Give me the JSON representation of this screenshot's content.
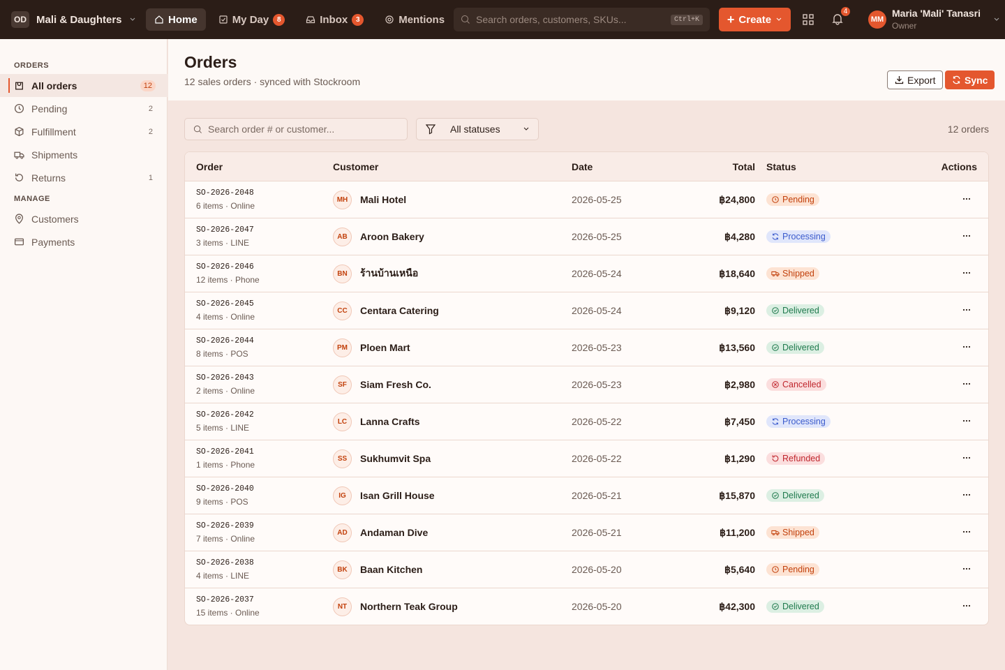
{
  "topbar": {
    "org_initials": "OD",
    "org_name": "Mali & Daughters",
    "nav": [
      {
        "label": "Home"
      },
      {
        "label": "My Day",
        "badge": 8
      },
      {
        "label": "Inbox",
        "badge": 3
      },
      {
        "label": "Mentions"
      }
    ],
    "search_placeholder": "Search orders, customers, SKUs...",
    "search_shortcut": "Ctrl+K",
    "create": "Create",
    "notifications": 4,
    "user": {
      "initials": "MM",
      "name": "Maria 'Mali' Tanasri",
      "role": "Owner"
    }
  },
  "sidebar": {
    "sections": [
      {
        "title": "ORDERS",
        "items": [
          {
            "label": "All orders",
            "count": 12
          },
          {
            "label": "Pending",
            "count": 2
          },
          {
            "label": "Fulfillment",
            "count": 2
          },
          {
            "label": "Shipments"
          },
          {
            "label": "Returns",
            "count": 1
          }
        ]
      },
      {
        "title": "MANAGE",
        "items": [
          {
            "label": "Customers"
          },
          {
            "label": "Payments"
          }
        ]
      }
    ]
  },
  "header": {
    "title": "Orders",
    "subtitle": "12 sales orders · synced with Stockroom",
    "export": "Export",
    "sync": "Sync"
  },
  "filters": {
    "search_placeholder": "Search order # or customer...",
    "status": "All statuses",
    "count": "12 orders"
  },
  "status_styles": [
    {
      "name": "Pending",
      "color": "#c2410c",
      "bg": "#fde3d3"
    },
    {
      "name": "Processing",
      "color": "#3b5bcc",
      "bg": "#e0e6fb"
    },
    {
      "name": "Shipped",
      "color": "#c2410c",
      "bg": "#fde3d3"
    },
    {
      "name": "Delivered",
      "color": "#1f7a4d",
      "bg": "#dcefe3"
    },
    {
      "name": "Cancelled",
      "color": "#c0262d",
      "bg": "#fbdede"
    },
    {
      "name": "Refunded",
      "color": "#c0262d",
      "bg": "#fbdede"
    }
  ],
  "table": {
    "columns": [
      "Order",
      "Customer",
      "Date",
      "Total",
      "Status",
      "Actions"
    ],
    "rows": [
      {
        "id": "SO-2026-2048",
        "meta": "6 items · Online",
        "initials": "MH",
        "customer": "Mali Hotel",
        "date": "2026-05-25",
        "total": "฿24,800",
        "status": "Pending"
      },
      {
        "id": "SO-2026-2047",
        "meta": "3 items · LINE",
        "initials": "AB",
        "customer": "Aroon Bakery",
        "date": "2026-05-25",
        "total": "฿4,280",
        "status": "Processing"
      },
      {
        "id": "SO-2026-2046",
        "meta": "12 items · Phone",
        "initials": "BN",
        "customer": "ร้านบ้านเหนือ",
        "date": "2026-05-24",
        "total": "฿18,640",
        "status": "Shipped"
      },
      {
        "id": "SO-2026-2045",
        "meta": "4 items · Online",
        "initials": "CC",
        "customer": "Centara Catering",
        "date": "2026-05-24",
        "total": "฿9,120",
        "status": "Delivered"
      },
      {
        "id": "SO-2026-2044",
        "meta": "8 items · POS",
        "initials": "PM",
        "customer": "Ploen Mart",
        "date": "2026-05-23",
        "total": "฿13,560",
        "status": "Delivered"
      },
      {
        "id": "SO-2026-2043",
        "meta": "2 items · Online",
        "initials": "SF",
        "customer": "Siam Fresh Co.",
        "date": "2026-05-23",
        "total": "฿2,980",
        "status": "Cancelled"
      },
      {
        "id": "SO-2026-2042",
        "meta": "5 items · LINE",
        "initials": "LC",
        "customer": "Lanna Crafts",
        "date": "2026-05-22",
        "total": "฿7,450",
        "status": "Processing"
      },
      {
        "id": "SO-2026-2041",
        "meta": "1 items · Phone",
        "initials": "SS",
        "customer": "Sukhumvit Spa",
        "date": "2026-05-22",
        "total": "฿1,290",
        "status": "Refunded"
      },
      {
        "id": "SO-2026-2040",
        "meta": "9 items · POS",
        "initials": "IG",
        "customer": "Isan Grill House",
        "date": "2026-05-21",
        "total": "฿15,870",
        "status": "Delivered"
      },
      {
        "id": "SO-2026-2039",
        "meta": "7 items · Online",
        "initials": "AD",
        "customer": "Andaman Dive",
        "date": "2026-05-21",
        "total": "฿11,200",
        "status": "Shipped"
      },
      {
        "id": "SO-2026-2038",
        "meta": "4 items · LINE",
        "initials": "BK",
        "customer": "Baan Kitchen",
        "date": "2026-05-20",
        "total": "฿5,640",
        "status": "Pending"
      },
      {
        "id": "SO-2026-2037",
        "meta": "15 items · Online",
        "initials": "NT",
        "customer": "Northern Teak Group",
        "date": "2026-05-20",
        "total": "฿42,300",
        "status": "Delivered"
      }
    ]
  }
}
